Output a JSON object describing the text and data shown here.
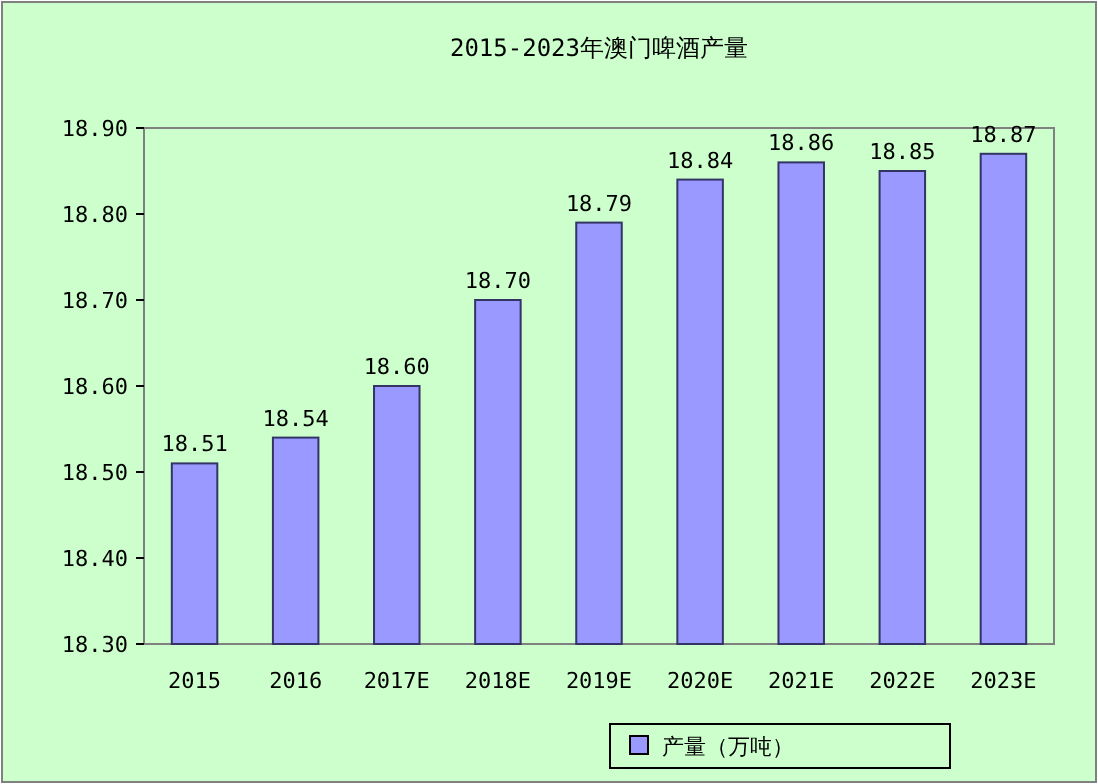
{
  "chart_data": {
    "type": "bar",
    "title": "2015-2023年澳门啤酒产量",
    "categories": [
      "2015",
      "2016",
      "2017E",
      "2018E",
      "2019E",
      "2020E",
      "2021E",
      "2022E",
      "2023E"
    ],
    "series": [
      {
        "name": "产量（万吨）",
        "color": "#9999ff",
        "values": [
          18.51,
          18.54,
          18.6,
          18.7,
          18.79,
          18.84,
          18.86,
          18.85,
          18.87
        ],
        "value_labels": [
          "18.51",
          "18.54",
          "18.60",
          "18.70",
          "18.79",
          "18.84",
          "18.86",
          "18.85",
          "18.87"
        ]
      }
    ],
    "ylim": [
      18.3,
      18.9
    ],
    "yticks": [
      {
        "value": 18.3,
        "label": "18.30"
      },
      {
        "value": 18.4,
        "label": "18.40"
      },
      {
        "value": 18.5,
        "label": "18.50"
      },
      {
        "value": 18.6,
        "label": "18.60"
      },
      {
        "value": 18.7,
        "label": "18.70"
      },
      {
        "value": 18.8,
        "label": "18.80"
      },
      {
        "value": 18.9,
        "label": "18.90"
      }
    ],
    "legend": "bottom",
    "grid": false
  }
}
